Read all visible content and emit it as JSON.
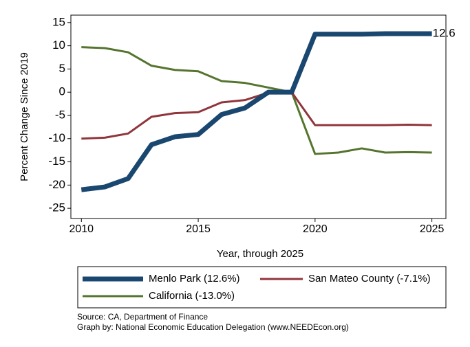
{
  "chart_data": {
    "type": "line",
    "x": [
      2010,
      2011,
      2012,
      2013,
      2014,
      2015,
      2016,
      2017,
      2018,
      2019,
      2020,
      2021,
      2022,
      2023,
      2024,
      2025
    ],
    "series": [
      {
        "name": "Menlo Park (12.6%)",
        "color": "#1a476f",
        "width": 7,
        "values": [
          -21,
          -20.4,
          -18.6,
          -11.3,
          -9.6,
          -9.1,
          -4.8,
          -3.4,
          0,
          0,
          12.5,
          12.5,
          12.5,
          12.6,
          12.6,
          12.6
        ],
        "value_labels": [
          null,
          null,
          null,
          null,
          null,
          null,
          null,
          null,
          null,
          null,
          null,
          null,
          null,
          null,
          null,
          "12.6"
        ]
      },
      {
        "name": "San Mateo County (-7.1%)",
        "color": "#90353b",
        "width": 3,
        "values": [
          -10,
          -9.8,
          -8.9,
          -5.3,
          -4.5,
          -4.3,
          -2.2,
          -1.7,
          -0.1,
          0,
          -7.1,
          -7.1,
          -7.1,
          -7.1,
          -7.0,
          -7.1
        ]
      },
      {
        "name": "California (-13.0%)",
        "color": "#55752f",
        "width": 3,
        "values": [
          9.7,
          9.5,
          8.6,
          5.7,
          4.8,
          4.5,
          2.4,
          2.0,
          1.0,
          0,
          -13.3,
          -13.0,
          -12.1,
          -13.0,
          -12.9,
          -13.0
        ]
      }
    ],
    "xlim": [
      2009.55,
      2025.6
    ],
    "xticks": [
      2010,
      2015,
      2020,
      2025
    ],
    "ylim": [
      -27.2,
      16.6
    ],
    "yticks": [
      15,
      10,
      5,
      0,
      -5,
      -10,
      -15,
      -20,
      -25
    ],
    "grid": false,
    "xlabel": "Year, through 2025",
    "ylabel": "Percent Change Since 2019",
    "legend": "bottom",
    "notes": [
      "Source: CA, Department of Finance",
      "Graph by: National Economic Education Delegation (www.NEEDEcon.org)"
    ]
  }
}
